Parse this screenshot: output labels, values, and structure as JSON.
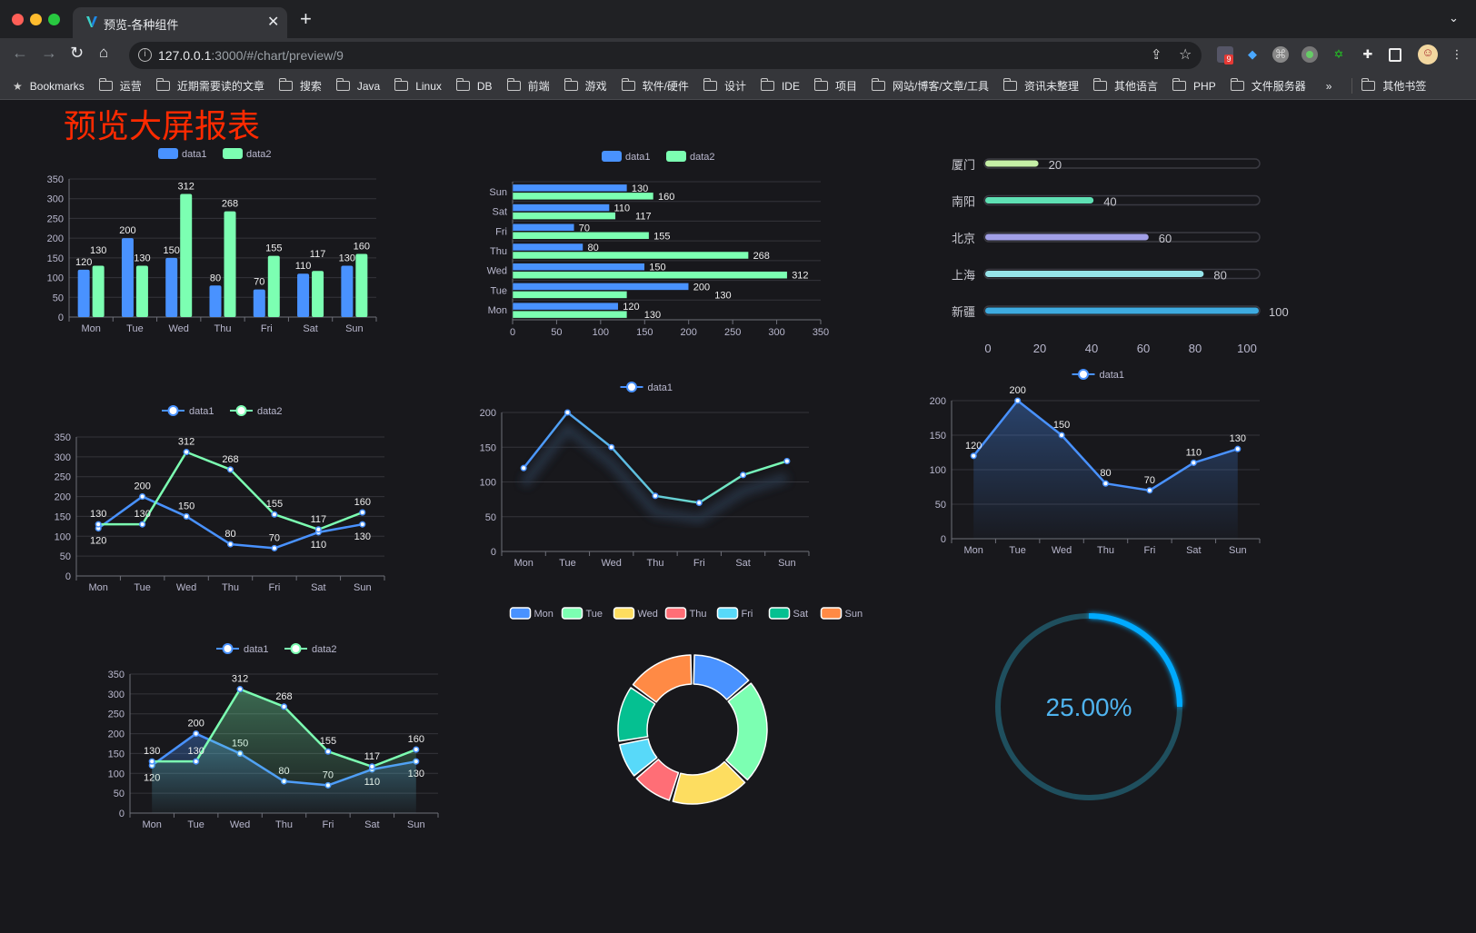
{
  "browser": {
    "tab_title": "预览-各种组件",
    "url_host": "127.0.0.1",
    "url_rest": ":3000/#/chart/preview/9",
    "extension_badge": "9",
    "bookmarks_label": "Bookmarks",
    "bookmarks": [
      "运营",
      "近期需要读的文章",
      "搜索",
      "Java",
      "Linux",
      "DB",
      "前端",
      "游戏",
      "软件/硬件",
      "设计",
      "IDE",
      "项目",
      "网站/博客/文章/工具",
      "资讯未整理",
      "其他语言",
      "PHP",
      "文件服务器"
    ],
    "more": "»",
    "other_bookmarks": "其他书签"
  },
  "page": {
    "title": "预览大屏报表"
  },
  "colors": {
    "blue": "#4992ff",
    "green": "#7cffb2",
    "yellow": "#fddd60",
    "red": "#ff6e76",
    "cyan": "#58d9f9",
    "teal": "#05c091",
    "orange": "#ff8a45",
    "title": "#ff2a00",
    "gauge": "#00aaff"
  },
  "chart_data": [
    {
      "type": "bar",
      "orientation": "vertical",
      "categories": [
        "Mon",
        "Tue",
        "Wed",
        "Thu",
        "Fri",
        "Sat",
        "Sun"
      ],
      "series": [
        {
          "name": "data1",
          "values": [
            120,
            200,
            150,
            80,
            70,
            110,
            130
          ]
        },
        {
          "name": "data2",
          "values": [
            130,
            130,
            312,
            268,
            155,
            117,
            160
          ]
        }
      ],
      "ylim": [
        0,
        350
      ],
      "yticks": [
        0,
        50,
        100,
        150,
        200,
        250,
        300,
        350
      ],
      "grid": true,
      "legend": "top",
      "data_labels": true
    },
    {
      "type": "bar",
      "orientation": "horizontal",
      "categories": [
        "Mon",
        "Tue",
        "Wed",
        "Thu",
        "Fri",
        "Sat",
        "Sun"
      ],
      "series": [
        {
          "name": "data1",
          "values": [
            120,
            200,
            150,
            80,
            70,
            110,
            130
          ]
        },
        {
          "name": "data2",
          "values": [
            130,
            130,
            312,
            268,
            155,
            117,
            160
          ]
        }
      ],
      "xlim": [
        0,
        350
      ],
      "xticks": [
        0,
        50,
        100,
        150,
        200,
        250,
        300,
        350
      ],
      "grid": true,
      "legend": "top",
      "data_labels": true
    },
    {
      "type": "bar",
      "orientation": "horizontal",
      "style": "progress",
      "categories": [
        "厦门",
        "南阳",
        "北京",
        "上海",
        "新疆"
      ],
      "values": [
        20,
        40,
        60,
        80,
        100
      ],
      "xlim": [
        0,
        100
      ],
      "xticks": [
        0,
        20,
        40,
        60,
        80,
        100
      ],
      "bar_colors": [
        "#c5efa6",
        "#5fe0b4",
        "#a19fe6",
        "#96e4ea",
        "#3eabe0"
      ],
      "data_labels": true
    },
    {
      "type": "line",
      "categories": [
        "Mon",
        "Tue",
        "Wed",
        "Thu",
        "Fri",
        "Sat",
        "Sun"
      ],
      "series": [
        {
          "name": "data1",
          "values": [
            120,
            200,
            150,
            80,
            70,
            110,
            130
          ]
        },
        {
          "name": "data2",
          "values": [
            130,
            130,
            312,
            268,
            155,
            117,
            160
          ]
        }
      ],
      "ylim": [
        0,
        350
      ],
      "yticks": [
        0,
        50,
        100,
        150,
        200,
        250,
        300,
        350
      ],
      "grid": true,
      "legend": "top",
      "data_labels": true
    },
    {
      "type": "line",
      "gradient": true,
      "categories": [
        "Mon",
        "Tue",
        "Wed",
        "Thu",
        "Fri",
        "Sat",
        "Sun"
      ],
      "series": [
        {
          "name": "data1",
          "values": [
            120,
            200,
            150,
            80,
            70,
            110,
            130
          ]
        }
      ],
      "ylim": [
        0,
        200
      ],
      "yticks": [
        0,
        50,
        100,
        150,
        200
      ],
      "grid": true,
      "legend": "top",
      "data_labels": false
    },
    {
      "type": "area",
      "categories": [
        "Mon",
        "Tue",
        "Wed",
        "Thu",
        "Fri",
        "Sat",
        "Sun"
      ],
      "series": [
        {
          "name": "data1",
          "values": [
            120,
            200,
            150,
            80,
            70,
            110,
            130
          ]
        }
      ],
      "ylim": [
        0,
        200
      ],
      "yticks": [
        0,
        50,
        100,
        150,
        200
      ],
      "grid": true,
      "legend": "top",
      "data_labels": true
    },
    {
      "type": "pie",
      "style": "donut",
      "categories": [
        "Mon",
        "Tue",
        "Wed",
        "Thu",
        "Fri",
        "Sat",
        "Sun"
      ],
      "values": [
        120,
        200,
        150,
        80,
        70,
        110,
        130
      ],
      "legend": "top"
    },
    {
      "type": "gauge",
      "value": 25,
      "label": "25.00%"
    },
    {
      "type": "area",
      "categories": [
        "Mon",
        "Tue",
        "Wed",
        "Thu",
        "Fri",
        "Sat",
        "Sun"
      ],
      "series": [
        {
          "name": "data1",
          "values": [
            120,
            200,
            150,
            80,
            70,
            110,
            130
          ]
        },
        {
          "name": "data2",
          "values": [
            130,
            130,
            312,
            268,
            155,
            117,
            160
          ]
        }
      ],
      "ylim": [
        0,
        350
      ],
      "yticks": [
        0,
        50,
        100,
        150,
        200,
        250,
        300,
        350
      ],
      "grid": true,
      "legend": "top",
      "data_labels": true
    }
  ]
}
